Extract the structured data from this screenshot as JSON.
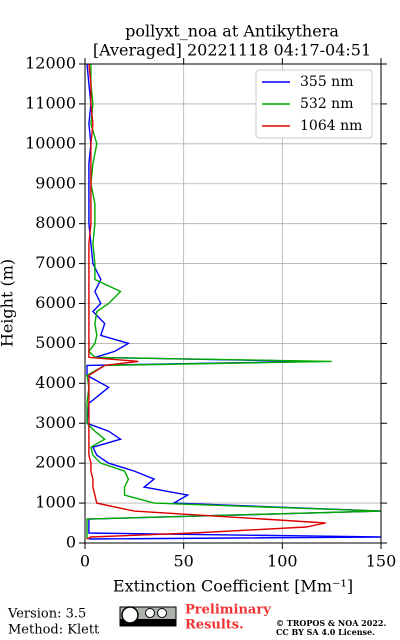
{
  "chart_data": {
    "type": "line",
    "orientation": "vertical-profile",
    "title": "pollyxt_noa at Antikythera",
    "subtitle": "[Averaged] 20221118 04:17-04:51",
    "xlabel": "Extinction Coefficient [Mm⁻¹]",
    "ylabel": "Height (m)",
    "xlim": [
      0,
      150
    ],
    "xticks": [
      0,
      50,
      100,
      150
    ],
    "ylim": [
      0,
      12000
    ],
    "yticks": [
      0,
      1000,
      2000,
      3000,
      4000,
      5000,
      6000,
      7000,
      8000,
      9000,
      10000,
      11000,
      12000
    ],
    "grid": true,
    "legend": "upper right",
    "heights": [
      100,
      150,
      250,
      400,
      500,
      600,
      800,
      1000,
      1200,
      1400,
      1600,
      1800,
      2000,
      2200,
      2400,
      2600,
      2800,
      3000,
      3500,
      3900,
      4200,
      4450,
      4550,
      4650,
      4800,
      5000,
      5200,
      5500,
      5800,
      6000,
      6300,
      6600,
      7000,
      7500,
      8000,
      8500,
      9000,
      9500,
      10000,
      10500,
      11000,
      11500,
      12000
    ],
    "series": [
      {
        "name": "355 nm",
        "color": "#0000ff",
        "values": [
          2,
          150,
          2,
          2,
          2,
          2,
          150,
          45,
          52,
          30,
          35,
          25,
          12,
          6,
          4,
          18,
          12,
          1,
          2,
          12,
          1,
          1,
          118,
          5,
          15,
          22,
          8,
          10,
          4,
          8,
          5,
          8,
          4,
          3,
          2,
          2,
          2,
          2,
          3,
          2,
          3,
          2,
          1
        ]
      },
      {
        "name": "532 nm",
        "color": "#00aa00",
        "values": [
          1,
          1,
          1,
          1,
          1,
          1,
          150,
          35,
          20,
          20,
          22,
          20,
          8,
          4,
          3,
          10,
          5,
          1,
          1,
          2,
          1,
          10,
          125,
          5,
          2,
          5,
          6,
          5,
          6,
          12,
          18,
          5,
          5,
          4,
          5,
          5,
          3,
          4,
          6,
          3,
          4,
          3,
          3
        ]
      },
      {
        "name": "1064 nm",
        "color": "#dd0000",
        "values": [
          1,
          3,
          55,
          112,
          122,
          90,
          25,
          6,
          5,
          4,
          4,
          3,
          3,
          2,
          2,
          2,
          2,
          2,
          2,
          2,
          2,
          10,
          27,
          2,
          2,
          2,
          2,
          2,
          2,
          2,
          2,
          2,
          2,
          2,
          3,
          3,
          3,
          3,
          3,
          4,
          3,
          3,
          2
        ]
      }
    ]
  },
  "footer": {
    "version": "Version: 3.5",
    "method": "Method: Klett",
    "preliminary": [
      "Preliminary",
      "Results."
    ],
    "copyright": [
      "© TROPOS & NOA 2022.",
      "CC BY SA 4.0 License."
    ]
  }
}
